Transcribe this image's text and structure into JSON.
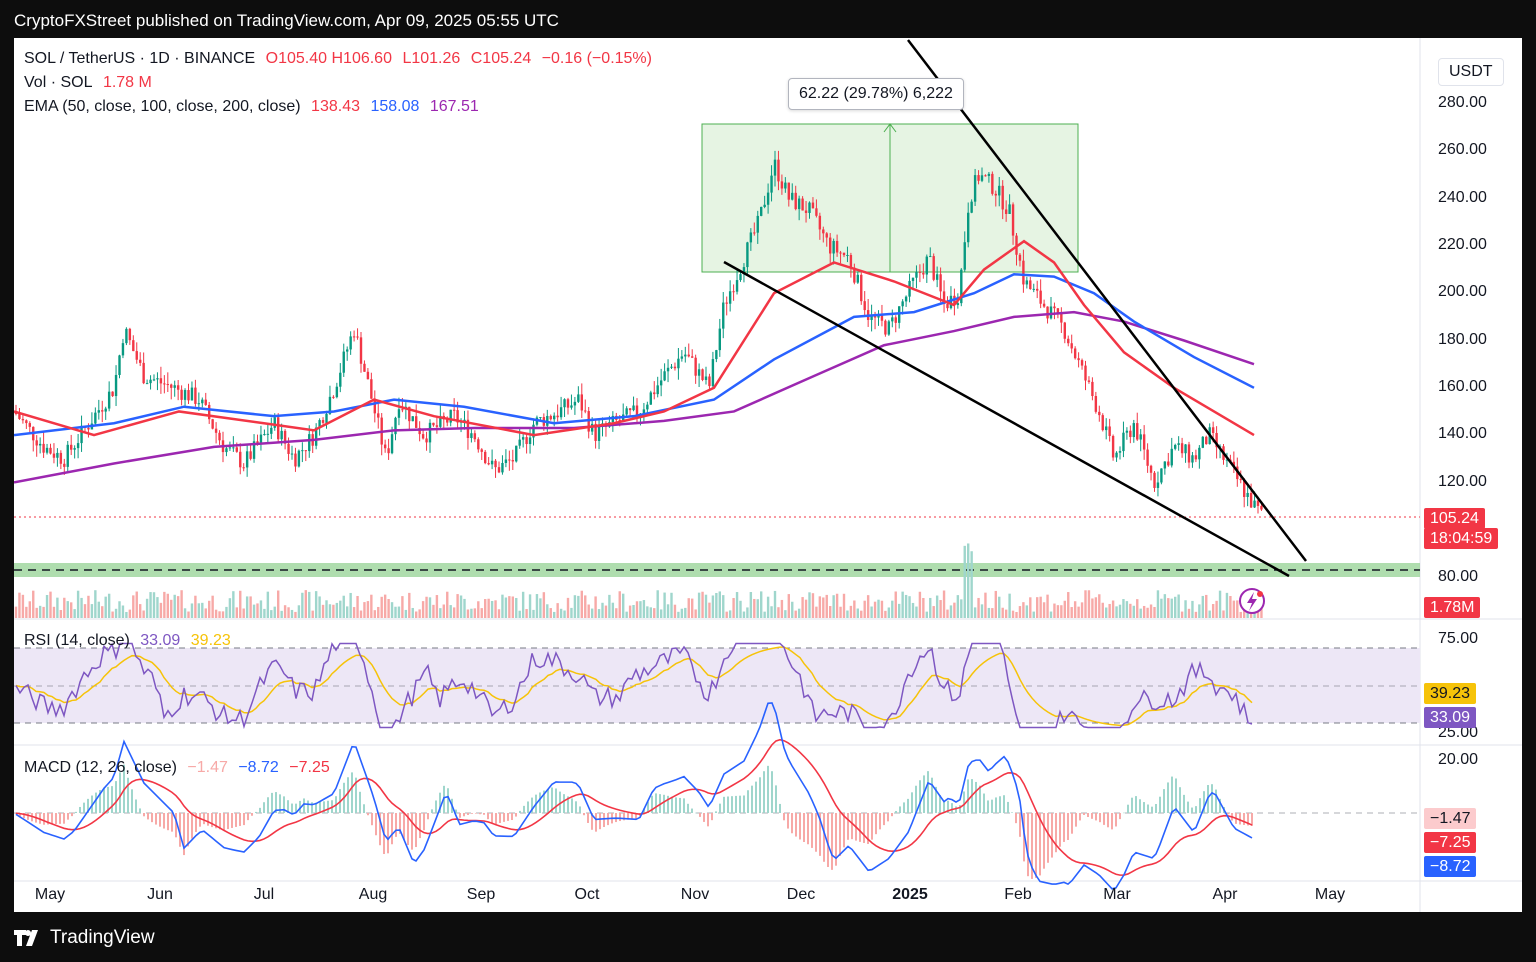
{
  "header": {
    "text": "CryptoFXStreet published on TradingView.com, Apr 09, 2025 05:55 UTC"
  },
  "footer": {
    "brand": "TradingView"
  },
  "currency": "USDT",
  "legend": {
    "symbol": "SOL / TetherUS · 1D · BINANCE",
    "o": "O105.40",
    "h": "H106.60",
    "l": "L101.26",
    "c": "C105.24",
    "chg": "−0.16 (−0.15%)",
    "vol_label": "Vol · SOL",
    "vol_value": "1.78 M",
    "ema_label": "EMA (50, close, 100, close, 200, close)",
    "ema50": "138.43",
    "ema100": "158.08",
    "ema200": "167.51",
    "rsi_label": "RSI (14, close)",
    "rsi": "33.09",
    "rsi_ma": "39.23",
    "macd_label": "MACD (12, 26, close)",
    "macd_hist": "−1.47",
    "macd": "−8.72",
    "macd_signal": "−7.25"
  },
  "measure": {
    "text": "62.22 (29.78%) 6,222"
  },
  "price_tags": {
    "price": "105.24",
    "countdown": "18:04:59",
    "volume": "1.78M",
    "rsi_ma": "39.23",
    "rsi": "33.09",
    "macd_hist": "−1.47",
    "macd_signal": "−7.25",
    "macd": "−8.72"
  },
  "y_ticks": [
    "280.00",
    "260.00",
    "240.00",
    "220.00",
    "200.00",
    "180.00",
    "160.00",
    "140.00",
    "120.00",
    "80.00"
  ],
  "rsi_ticks": [
    "75.00",
    "25.00"
  ],
  "macd_ticks": [
    "20.00"
  ],
  "x_ticks": [
    "May",
    "Jun",
    "Jul",
    "Aug",
    "Sep",
    "Oct",
    "Nov",
    "Dec",
    "2025",
    "Feb",
    "Mar",
    "Apr",
    "May"
  ],
  "colors": {
    "up": "#089981",
    "down": "#f23645",
    "ema50": "#f23645",
    "ema100": "#2962ff",
    "ema200": "#9c27b0",
    "rsi": "#7e57c2",
    "rsi_ma": "#f6c309",
    "macd": "#2962ff",
    "signal": "#f23645"
  },
  "chart_data": {
    "type": "line",
    "title": "SOL / TetherUS · 1D · BINANCE",
    "ylim": [
      80,
      290
    ],
    "x": [
      "May",
      "Jun",
      "Jul",
      "Aug",
      "Sep",
      "Oct",
      "Nov",
      "Dec",
      "2025",
      "Feb",
      "Mar",
      "Apr"
    ],
    "series": [
      {
        "name": "SOL close (approx)",
        "values": [
          150,
          165,
          145,
          170,
          135,
          150,
          175,
          235,
          190,
          225,
          170,
          125
        ]
      },
      {
        "name": "EMA 50",
        "values": [
          150,
          160,
          148,
          160,
          145,
          150,
          160,
          200,
          210,
          220,
          180,
          140
        ]
      },
      {
        "name": "EMA 100",
        "values": [
          140,
          155,
          152,
          155,
          150,
          145,
          155,
          180,
          195,
          208,
          190,
          160
        ]
      },
      {
        "name": "EMA 200",
        "values": [
          120,
          135,
          140,
          142,
          143,
          145,
          150,
          165,
          180,
          192,
          190,
          170
        ]
      }
    ],
    "annotations": {
      "range_box": [
        210,
        272
      ],
      "measure": "62.22 (29.78%) 6,222",
      "support_zone": [
        82,
        88
      ]
    }
  }
}
